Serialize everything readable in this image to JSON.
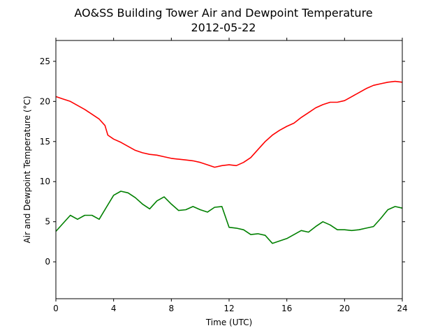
{
  "chart_data": {
    "type": "line",
    "title": "AO&SS Building Tower Air and Dewpoint Temperature",
    "subtitle": "2012-05-22",
    "xlabel": "Time (UTC)",
    "ylabel": "Air and Dewpoint Temperature (°C)",
    "xlim": [
      0,
      24
    ],
    "ylim": [
      -4.6,
      27.6
    ],
    "xticks": [
      0,
      4,
      8,
      12,
      16,
      20,
      24
    ],
    "yticks": [
      0,
      5,
      10,
      15,
      20,
      25
    ],
    "grid": false,
    "series": [
      {
        "color": "#ff0000",
        "x": [
          0,
          0.5,
          1,
          1.5,
          2,
          2.5,
          3,
          3.4,
          3.6,
          4,
          4.5,
          5,
          5.5,
          6,
          6.5,
          7,
          7.5,
          8,
          8.5,
          9,
          9.5,
          10,
          10.5,
          11,
          11.5,
          12,
          12.5,
          13,
          13.5,
          14,
          14.5,
          15,
          15.5,
          16,
          16.5,
          17,
          17.5,
          18,
          18.5,
          19,
          19.5,
          20,
          20.5,
          21,
          21.5,
          22,
          22.5,
          23,
          23.5,
          24
        ],
        "values": [
          20.6,
          20.3,
          20.0,
          19.5,
          19.0,
          18.4,
          17.8,
          17.0,
          15.8,
          15.3,
          14.9,
          14.4,
          13.9,
          13.6,
          13.4,
          13.3,
          13.1,
          12.9,
          12.8,
          12.7,
          12.6,
          12.4,
          12.1,
          11.8,
          12.0,
          12.1,
          12.0,
          12.4,
          13.0,
          14.0,
          15.0,
          15.8,
          16.4,
          16.9,
          17.3,
          18.0,
          18.6,
          19.2,
          19.6,
          19.9,
          19.9,
          20.1,
          20.6,
          21.1,
          21.6,
          22.0,
          22.2,
          22.4,
          22.5,
          22.4
        ]
      },
      {
        "color": "#008000",
        "x": [
          0,
          0.5,
          1,
          1.5,
          2,
          2.5,
          3,
          3.5,
          4,
          4.5,
          5,
          5.5,
          6,
          6.5,
          7,
          7.5,
          8,
          8.5,
          9,
          9.5,
          10,
          10.5,
          11,
          11.5,
          12,
          12.5,
          13,
          13.5,
          14,
          14.5,
          15,
          15.5,
          16,
          16.5,
          17,
          17.5,
          18,
          18.5,
          19,
          19.5,
          20,
          20.5,
          21,
          21.5,
          22,
          22.5,
          23,
          23.5,
          24
        ],
        "values": [
          3.8,
          4.8,
          5.8,
          5.3,
          5.8,
          5.8,
          5.3,
          6.8,
          8.3,
          8.8,
          8.6,
          8.0,
          7.2,
          6.6,
          7.6,
          8.1,
          7.2,
          6.4,
          6.5,
          6.9,
          6.5,
          6.2,
          6.8,
          6.9,
          4.3,
          4.2,
          4.0,
          3.4,
          3.5,
          3.3,
          2.3,
          2.6,
          2.9,
          3.4,
          3.9,
          3.7,
          4.4,
          5.0,
          4.6,
          4.0,
          4.0,
          3.9,
          4.0,
          4.2,
          4.4,
          5.4,
          6.5,
          6.9,
          6.7
        ]
      }
    ]
  }
}
